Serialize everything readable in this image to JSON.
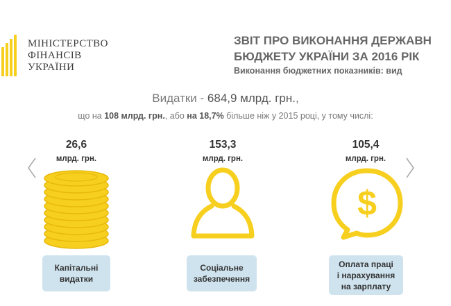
{
  "ministry": {
    "lines": [
      "МІНІСТЕРСТВО",
      "ФІНАНСІВ",
      "УКРАЇНИ"
    ]
  },
  "report": {
    "title_line1": "ЗВІТ ПРО ВИКОНАННЯ ДЕРЖАВН",
    "title_line2": "БЮДЖЕТУ УКРАЇНИ ЗА 2016 РІК",
    "subtitle": "Виконання бюджетних показників: вид"
  },
  "headline": {
    "prefix": "Видатки - ",
    "amount": "684,9 млрд. грн.",
    "suffix": ","
  },
  "subline": {
    "part1": "що на ",
    "bold1": "108 млрд. грн.",
    "part2": ", або ",
    "bold2": "на 18,7%",
    "part3": " більше ніж у 2015 році, у тому числі:"
  },
  "items": [
    {
      "value": "26,6",
      "unit": "млрд. грн.",
      "label_lines": [
        "Капітальні",
        "видатки"
      ],
      "icon": "coins-stack-icon"
    },
    {
      "value": "153,3",
      "unit": "млрд. грн.",
      "label_lines": [
        "Соціальне",
        "забезпечення"
      ],
      "icon": "person-icon"
    },
    {
      "value": "105,4",
      "unit": "млрд. грн.",
      "label_lines": [
        "Оплата праці",
        "і нарахування",
        "на зарплату"
      ],
      "icon": "dollar-speech-bubble-icon"
    }
  ],
  "colors": {
    "accent_yellow": "#f7cf1f",
    "coin_edge": "#e7b90c",
    "label_bg": "#cfe3ee",
    "arrow": "#aaaaaa"
  }
}
